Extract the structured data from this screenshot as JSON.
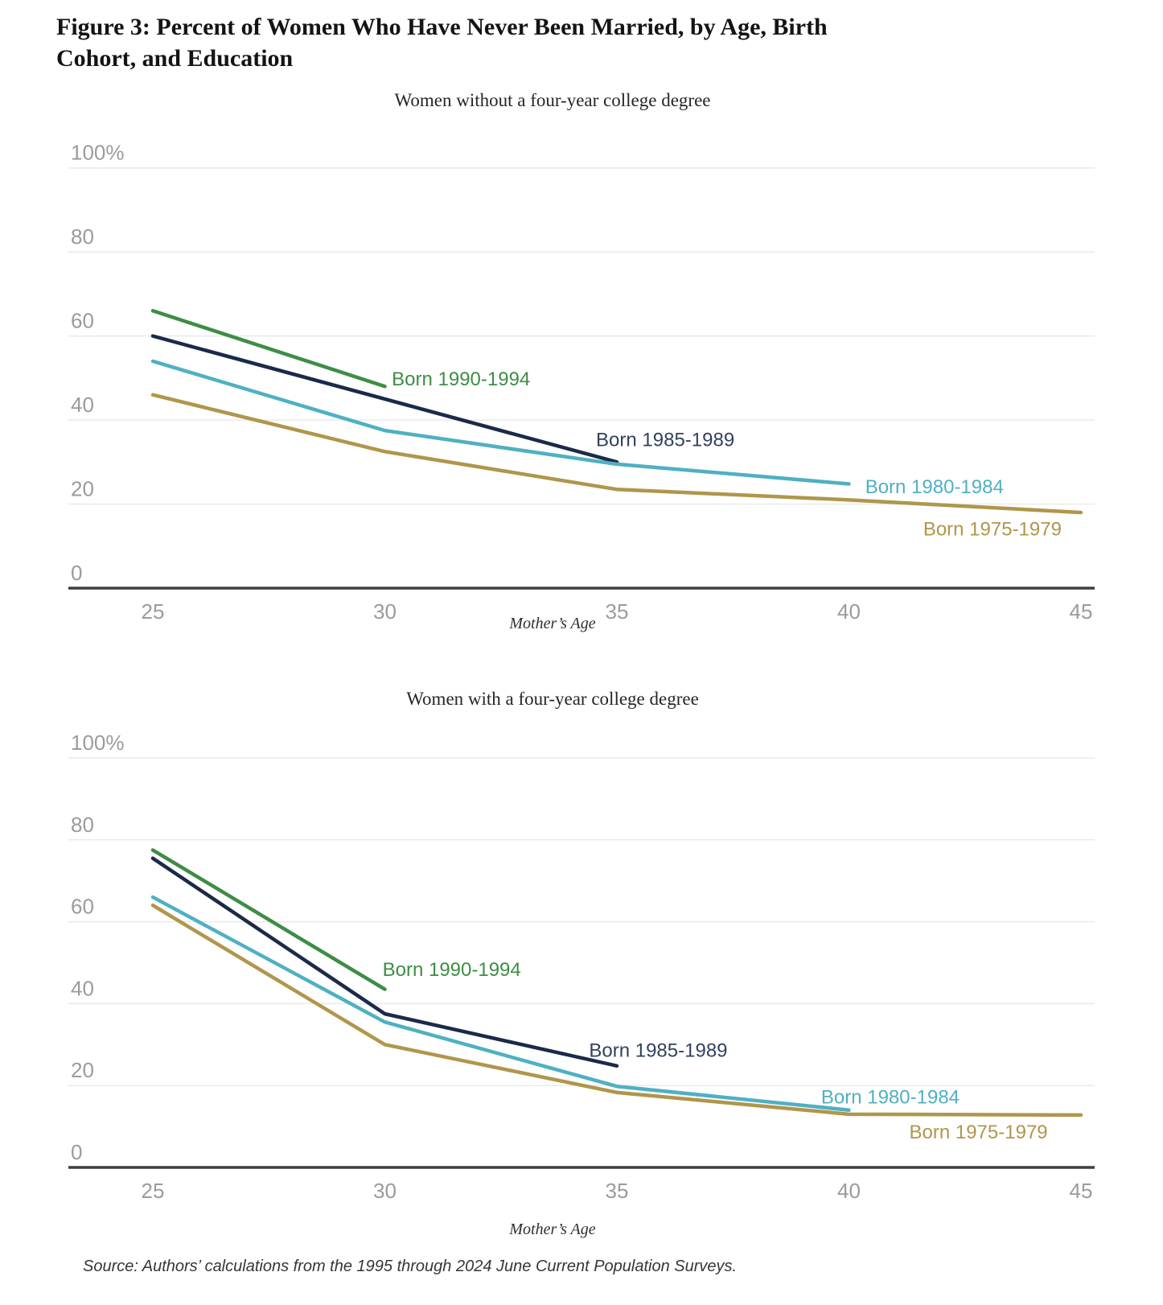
{
  "page": {
    "title_lines": [
      "Figure 3: Percent of Women Who Have Never Been Married, by Age, Birth",
      "Cohort, and Education"
    ],
    "source": "Source: Authors’ calculations from the 1995 through 2024 June Current Population Surveys.",
    "background": "#ffffff",
    "colors": {
      "gridline": "#eaeaea",
      "axis": "#3f3f3f",
      "tick_text": "#9b9b9b",
      "title_text": "#141414",
      "green": "#3e8d46",
      "navy": "#1b2a49",
      "teal": "#4fb0c2",
      "gold": "#b0964b"
    }
  },
  "chart_data": [
    {
      "type": "line",
      "title": "Women without a four-year college degree",
      "xlabel": "Mother’s Age",
      "xlim": [
        25,
        45
      ],
      "ylim": [
        0,
        100
      ],
      "x_ticks": [
        25,
        30,
        35,
        40,
        45
      ],
      "y_ticks": [
        0,
        20,
        40,
        60,
        80,
        100
      ],
      "y_tick_labels": [
        "0",
        "20",
        "40",
        "60",
        "80",
        "100%"
      ],
      "grid": "horizontal",
      "legend": "inline-labels",
      "series": [
        {
          "name": "Born 1990-1994",
          "color": "#3e8d46",
          "x": [
            25,
            30
          ],
          "y": [
            66,
            48
          ],
          "label_x": 30.15,
          "label_y": 49.5
        },
        {
          "name": "Born 1985-1989",
          "color": "#1b2a49",
          "label_color": "#33415e",
          "x": [
            25,
            30,
            35
          ],
          "y": [
            60,
            45,
            30
          ],
          "label_x": 34.55,
          "label_y": 35
        },
        {
          "name": "Born 1980-1984",
          "color": "#4fb0c2",
          "x": [
            25,
            30,
            35,
            40
          ],
          "y": [
            54,
            37.5,
            29.5,
            24.8
          ],
          "label_x": 40.35,
          "label_y": 23.8
        },
        {
          "name": "Born 1975-1979",
          "color": "#b0964b",
          "x": [
            25,
            30,
            35,
            40,
            45
          ],
          "y": [
            46,
            32.5,
            23.5,
            21,
            18
          ],
          "label_x": 41.6,
          "label_y": 13.8
        }
      ]
    },
    {
      "type": "line",
      "title": "Women with a four-year college degree",
      "xlabel": "Mother’s Age",
      "xlim": [
        25,
        45
      ],
      "ylim": [
        0,
        100
      ],
      "x_ticks": [
        25,
        30,
        35,
        40,
        45
      ],
      "y_ticks": [
        0,
        20,
        40,
        60,
        80,
        100
      ],
      "y_tick_labels": [
        "0",
        "20",
        "40",
        "60",
        "80",
        "100%"
      ],
      "grid": "horizontal",
      "legend": "inline-labels",
      "series": [
        {
          "name": "Born 1990-1994",
          "color": "#3e8d46",
          "x": [
            25,
            30
          ],
          "y": [
            77.5,
            43.5
          ],
          "label_x": 29.95,
          "label_y": 48
        },
        {
          "name": "Born 1985-1989",
          "color": "#1b2a49",
          "label_color": "#33415e",
          "x": [
            25,
            30,
            35
          ],
          "y": [
            75.5,
            37.5,
            24.8
          ],
          "label_x": 34.4,
          "label_y": 28.3
        },
        {
          "name": "Born 1980-1984",
          "color": "#4fb0c2",
          "x": [
            25,
            30,
            35,
            40
          ],
          "y": [
            66,
            35.5,
            19.8,
            14
          ],
          "label_x": 39.4,
          "label_y": 16.9
        },
        {
          "name": "Born 1975-1979",
          "color": "#b0964b",
          "x": [
            25,
            30,
            35,
            40,
            45
          ],
          "y": [
            64,
            30,
            18.3,
            13,
            12.8
          ],
          "label_x": 41.3,
          "label_y": 8.3
        }
      ]
    }
  ]
}
